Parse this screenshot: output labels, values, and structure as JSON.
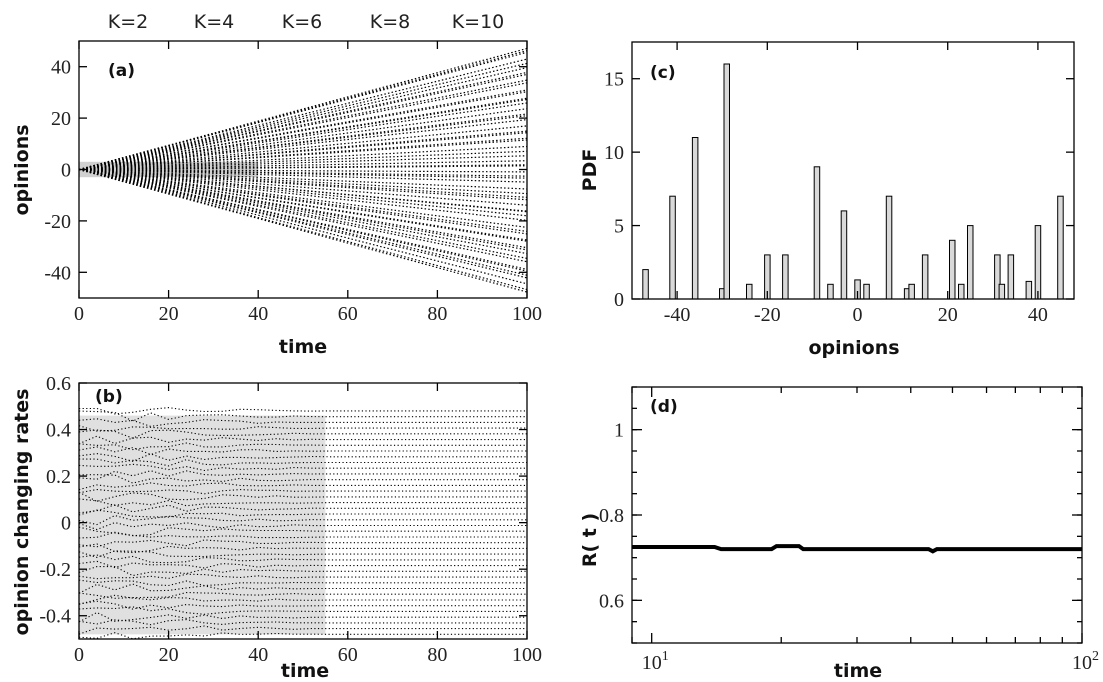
{
  "top_labels": [
    "K=2",
    "K=4",
    "K=6",
    "K=8",
    "K=10"
  ],
  "chart_data": [
    {
      "panel": "(a)",
      "type": "scatter",
      "xlabel": "time",
      "ylabel": "opinions",
      "xlim": [
        0,
        100
      ],
      "ylim": [
        -50,
        50
      ],
      "xticks": [
        "0",
        "20",
        "40",
        "60",
        "80",
        "100"
      ],
      "yticks": [
        "40",
        "20",
        "0",
        "-20",
        "-40"
      ],
      "spread_at_x100": [
        -48,
        48
      ]
    },
    {
      "panel": "(b)",
      "type": "scatter",
      "xlabel": "time",
      "ylabel": "opinion changing rates",
      "xlim": [
        0,
        100
      ],
      "ylim": [
        -0.5,
        0.6
      ],
      "xticks": [
        "0",
        "20",
        "40",
        "60",
        "80",
        "100"
      ],
      "yticks": [
        "0.6",
        "0.4",
        "0.2",
        "0",
        "-0.2",
        "-0.4"
      ],
      "rate_range": [
        -0.48,
        0.48
      ]
    },
    {
      "panel": "(c)",
      "type": "bar",
      "xlabel": "opinions",
      "ylabel": "PDF",
      "xlim": [
        -50,
        48
      ],
      "ylim": [
        0,
        17.5
      ],
      "xticks": [
        "-40",
        "-20",
        "0",
        "20",
        "40"
      ],
      "yticks": [
        "15",
        "10",
        "5",
        "0"
      ],
      "bars": [
        {
          "x": -47,
          "value": 2
        },
        {
          "x": -41,
          "value": 7
        },
        {
          "x": -36,
          "value": 11
        },
        {
          "x": -30,
          "value": 0.7
        },
        {
          "x": -29,
          "value": 16
        },
        {
          "x": -24,
          "value": 1
        },
        {
          "x": -20,
          "value": 3
        },
        {
          "x": -16,
          "value": 3
        },
        {
          "x": -9,
          "value": 9
        },
        {
          "x": -6,
          "value": 1
        },
        {
          "x": -3,
          "value": 6
        },
        {
          "x": 0,
          "value": 1.3
        },
        {
          "x": 2,
          "value": 1
        },
        {
          "x": 7,
          "value": 7
        },
        {
          "x": 11,
          "value": 0.7
        },
        {
          "x": 12,
          "value": 1
        },
        {
          "x": 15,
          "value": 3
        },
        {
          "x": 21,
          "value": 4
        },
        {
          "x": 23,
          "value": 1
        },
        {
          "x": 25,
          "value": 5
        },
        {
          "x": 31,
          "value": 3
        },
        {
          "x": 32,
          "value": 1
        },
        {
          "x": 34,
          "value": 3
        },
        {
          "x": 38,
          "value": 1.2
        },
        {
          "x": 40,
          "value": 5
        },
        {
          "x": 45,
          "value": 7
        }
      ]
    },
    {
      "panel": "(d)",
      "type": "line",
      "xlabel": "time",
      "ylabel": "R( t )",
      "xscale": "log",
      "xlim": [
        9,
        100
      ],
      "ylim": [
        0.5,
        1.1
      ],
      "xticks": [
        {
          "base": "10",
          "exp": "1"
        },
        {
          "base": "10",
          "exp": "2"
        }
      ],
      "yticks": [
        "1",
        "0.8",
        "0.6"
      ],
      "series": [
        {
          "x": [
            9,
            14,
            14.5,
            19,
            19.5,
            22,
            22.5,
            44,
            45,
            46,
            100
          ],
          "y": [
            0.725,
            0.725,
            0.72,
            0.72,
            0.727,
            0.727,
            0.72,
            0.72,
            0.715,
            0.72,
            0.72
          ]
        }
      ]
    }
  ]
}
